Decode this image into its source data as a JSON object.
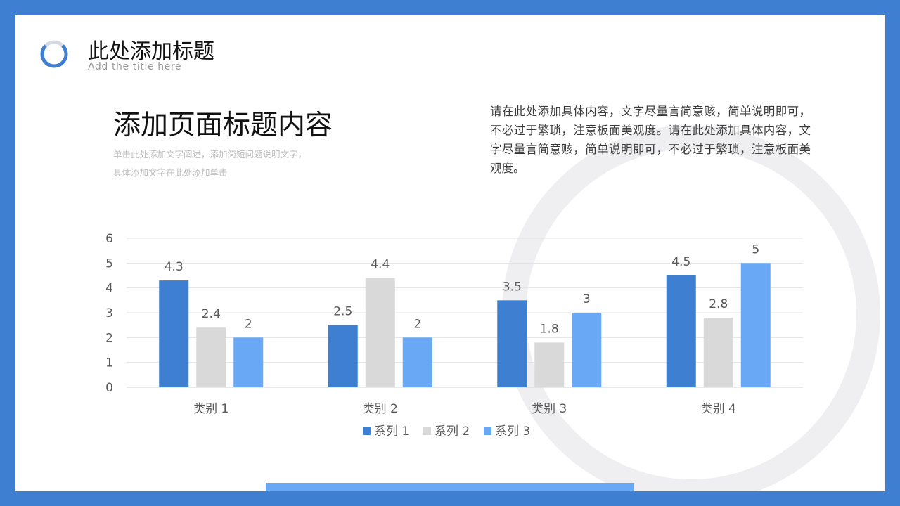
{
  "header": {
    "title": "此处添加标题",
    "subtitle": "Add the title here"
  },
  "main": {
    "title": "添加页面标题内容",
    "description": "单击此处添加文字阐述，添加简短问题说明文字，\n具体添加文字在此处添加单击",
    "paragraph": "请在此处添加具体内容，文字尽量言简意赅，简单说明即可，不必过于繁琐，注意板面美观度。请在此处添加具体内容，文字尽量言简意赅，简单说明即可，不必过于繁琐，注意板面美观度。"
  },
  "colors": {
    "accent": "#3f7fd1",
    "series1": "#3f7fd1",
    "series2": "#d9d9d9",
    "series3": "#69a8f5",
    "ring": "#efeff1"
  },
  "chart_data": {
    "type": "bar",
    "categories": [
      "类别 1",
      "类别 2",
      "类别 3",
      "类别 4"
    ],
    "series": [
      {
        "name": "系列 1",
        "values": [
          4.3,
          2.5,
          3.5,
          4.5
        ]
      },
      {
        "name": "系列 2",
        "values": [
          2.4,
          4.4,
          1.8,
          2.8
        ]
      },
      {
        "name": "系列 3",
        "values": [
          2,
          2,
          3,
          5
        ]
      }
    ],
    "ylim": [
      0,
      6
    ],
    "yticks": [
      0,
      1,
      2,
      3,
      4,
      5,
      6
    ],
    "grid": true,
    "legend": "bottom",
    "data_labels": true
  }
}
